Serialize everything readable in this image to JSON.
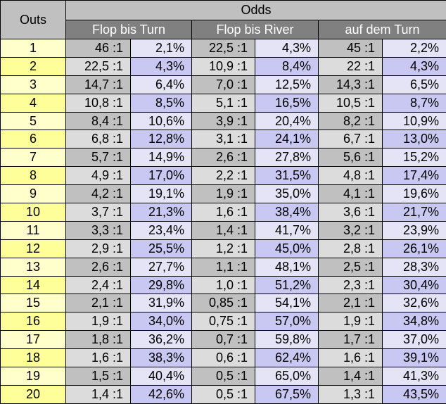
{
  "table": {
    "header": {
      "outs": "Outs",
      "odds": "Odds",
      "groups": [
        "Flop bis Turn",
        "Flop bis River",
        "auf dem Turn"
      ]
    },
    "rows": [
      [
        "1",
        "46 :1",
        "2,1%",
        "22,5 :1",
        "4,3%",
        "45 :1",
        "2,2%"
      ],
      [
        "2",
        "22,5 :1",
        "4,3%",
        "10,9 :1",
        "8,4%",
        "22 :1",
        "4,3%"
      ],
      [
        "3",
        "14,7 :1",
        "6,4%",
        "7,0 :1",
        "12,5%",
        "14,3 :1",
        "6,5%"
      ],
      [
        "4",
        "10,8 :1",
        "8,5%",
        "5,1 :1",
        "16,5%",
        "10,5 :1",
        "8,7%"
      ],
      [
        "5",
        "8,4 :1",
        "10,6%",
        "3,9 :1",
        "20,4%",
        "8,2 :1",
        "10,9%"
      ],
      [
        "6",
        "6,8 :1",
        "12,8%",
        "3,1 :1",
        "24,1%",
        "6,7 :1",
        "13,0%"
      ],
      [
        "7",
        "5,7 :1",
        "14,9%",
        "2,6 :1",
        "27,8%",
        "5,6 :1",
        "15,2%"
      ],
      [
        "8",
        "4,9 :1",
        "17,0%",
        "2,2 :1",
        "31,5%",
        "4,8 :1",
        "17,4%"
      ],
      [
        "9",
        "4,2 :1",
        "19,1%",
        "1,9 :1",
        "35,0%",
        "4,1 :1",
        "19,6%"
      ],
      [
        "10",
        "3,7 :1",
        "21,3%",
        "1,6 :1",
        "38,4%",
        "3,6 :1",
        "21,7%"
      ],
      [
        "11",
        "3,3 :1",
        "23,4%",
        "1,4 :1",
        "41,7%",
        "3,2 :1",
        "23,9%"
      ],
      [
        "12",
        "2,9 :1",
        "25,5%",
        "1,2 :1",
        "45,0%",
        "2,8 :1",
        "26,1%"
      ],
      [
        "13",
        "2,6 :1",
        "27,7%",
        "1,1 :1",
        "48,1%",
        "2,5 :1",
        "28,3%"
      ],
      [
        "14",
        "2,4 :1",
        "29,8%",
        "1,0 :1",
        "51,2%",
        "2,3 :1",
        "30,4%"
      ],
      [
        "15",
        "2,1 :1",
        "31,9%",
        "0,85 :1",
        "54,1%",
        "2,1 :1",
        "32,6%"
      ],
      [
        "16",
        "1,9 :1",
        "34,0%",
        "0,75 :1",
        "57,0%",
        "1,9 :1",
        "34,8%"
      ],
      [
        "17",
        "1,8 :1",
        "36,2%",
        "0,7 :1",
        "59,8%",
        "1,7 :1",
        "37,0%"
      ],
      [
        "18",
        "1,6 :1",
        "38,3%",
        "0,6 :1",
        "62,4%",
        "1,6 :1",
        "39,1%"
      ],
      [
        "19",
        "1,5 :1",
        "40,4%",
        "0,5 :1",
        "65,0%",
        "1,4 :1",
        "41,3%"
      ],
      [
        "20",
        "1,4 :1",
        "42,6%",
        "0,5 :1",
        "67,5%",
        "1,3 :1",
        "43,5%"
      ]
    ]
  }
}
